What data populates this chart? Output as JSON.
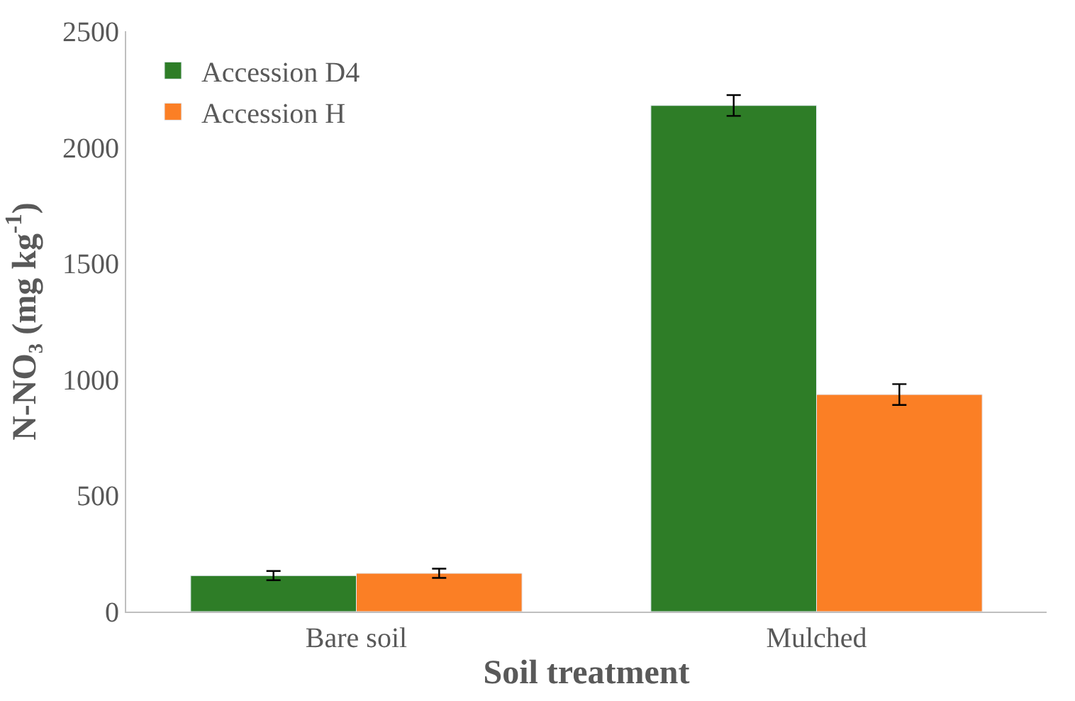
{
  "chart_data": {
    "type": "bar",
    "xlabel": "Soil treatment",
    "ylabel": "N-NO₃ (mg kg$^{-1}$)",
    "categories": [
      "Bare soil",
      "Mulched"
    ],
    "series": [
      {
        "name": "Accession D4",
        "color": "#2e7d27",
        "values": [
          155,
          2180
        ],
        "errors": [
          20,
          45
        ]
      },
      {
        "name": "Accession H",
        "color": "#fb7f25",
        "values": [
          165,
          935
        ],
        "errors": [
          20,
          45
        ]
      }
    ],
    "ylim": [
      0,
      2500
    ],
    "yticks": [
      0,
      500,
      1000,
      1500,
      2000,
      2500
    ],
    "legend": "top left"
  }
}
